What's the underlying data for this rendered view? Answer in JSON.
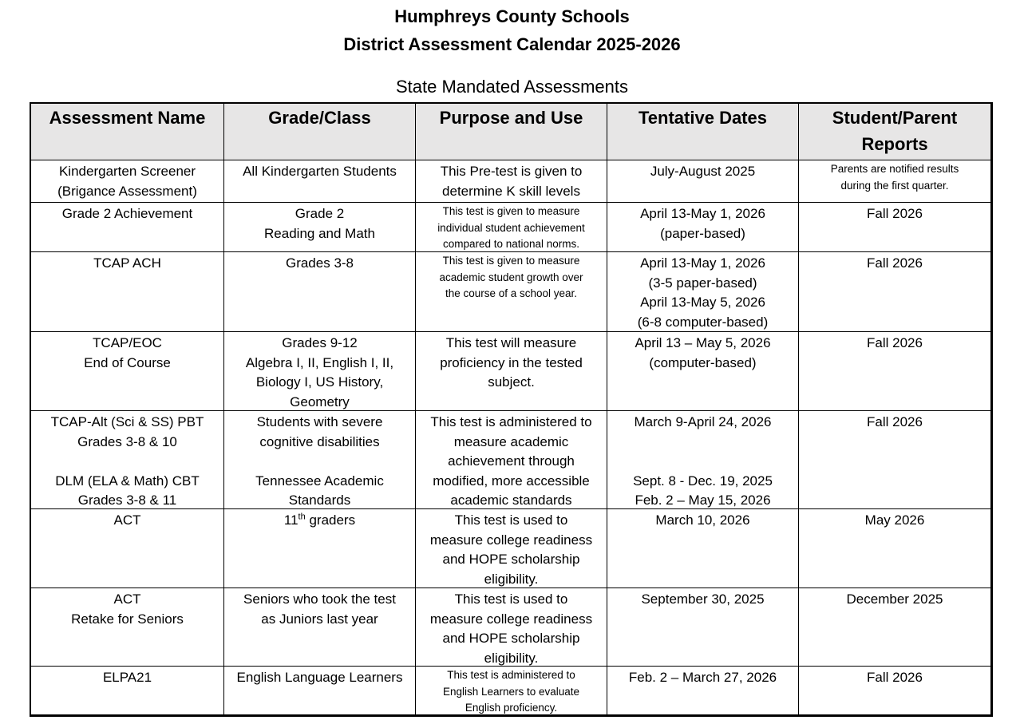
{
  "header": {
    "title": [
      "Humphreys County Schools",
      "District Assessment Calendar 2025-2026"
    ],
    "subtitle": "State Mandated Assessments"
  },
  "table": {
    "columns": [
      [
        "Assessment Name"
      ],
      [
        "Grade/Class"
      ],
      [
        "Purpose and Use"
      ],
      [
        "Tentative Dates"
      ],
      [
        "Student/Parent",
        "Reports"
      ]
    ],
    "rows": [
      [
        [
          "Kindergarten Screener",
          "(Brigance Assessment)"
        ],
        [
          "All Kindergarten Students"
        ],
        [
          "This Pre-test is given to",
          "determine K skill levels"
        ],
        [
          "July-August 2025"
        ],
        [
          "Parents are notified results",
          "during the first quarter."
        ]
      ],
      [
        [
          "Grade 2 Achievement"
        ],
        [
          "Grade 2",
          "Reading and Math"
        ],
        [
          "This test is given to measure",
          "individual student achievement",
          "compared to national norms."
        ],
        [
          "April 13-May 1, 2026",
          "(paper-based)"
        ],
        [
          "Fall 2026"
        ]
      ],
      [
        [
          "TCAP ACH"
        ],
        [
          "Grades 3-8"
        ],
        [
          "This test is given to measure",
          "academic student growth over",
          "the course of a school year."
        ],
        [
          "April 13-May 1, 2026",
          "(3-5 paper-based)",
          "April 13-May 5, 2026",
          "(6-8 computer-based)"
        ],
        [
          "Fall 2026"
        ]
      ],
      [
        [
          "TCAP/EOC",
          "End of Course"
        ],
        [
          "Grades 9-12",
          "Algebra I, II, English I, II,",
          "Biology I, US History,",
          "Geometry"
        ],
        [
          "This test will measure",
          "proficiency in the tested",
          "subject."
        ],
        [
          "April 13 – May 5, 2026",
          "(computer-based)"
        ],
        [
          "Fall 2026"
        ]
      ],
      [
        [
          "TCAP-Alt (Sci & SS) PBT",
          "Grades 3-8 & 10",
          "DLM (ELA & Math) CBT",
          "Grades 3-8 & 11"
        ],
        [
          "Students with severe",
          "cognitive disabilities",
          "Tennessee Academic",
          "Standards"
        ],
        [
          "This test is administered to",
          "measure academic",
          "achievement through",
          "modified, more accessible",
          "academic standards"
        ],
        [
          "March 9-April 24, 2026",
          "Sept. 8 - Dec. 19, 2025",
          "Feb. 2 – May 15, 2026"
        ],
        [
          "Fall 2026"
        ]
      ],
      [
        [
          "ACT"
        ],
        [
          {
            "text": "11",
            "sup": "th",
            "after": " graders"
          }
        ],
        [
          "This test is used to",
          "measure college readiness",
          "and HOPE scholarship",
          "eligibility."
        ],
        [
          "March 10, 2026"
        ],
        [
          "May 2026"
        ]
      ],
      [
        [
          "ACT",
          "Retake for Seniors"
        ],
        [
          "Seniors who took the test",
          "as Juniors last year"
        ],
        [
          "This test is used to",
          "measure college readiness",
          "and HOPE scholarship",
          "eligibility."
        ],
        [
          "September 30, 2025"
        ],
        [
          "December 2025"
        ]
      ],
      [
        [
          "ELPA21"
        ],
        [
          "English Language Learners"
        ],
        [
          "This test is administered to",
          "English Learners to evaluate",
          "English proficiency."
        ],
        [
          "Feb. 2 – March 27, 2026"
        ],
        [
          "Fall 2026"
        ]
      ]
    ]
  }
}
